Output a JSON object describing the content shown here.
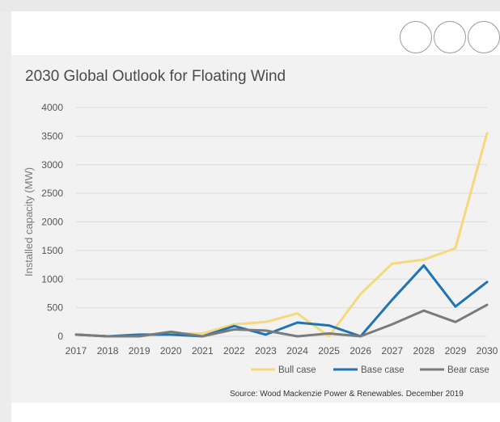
{
  "chart_data": {
    "type": "line",
    "title": "2030 Global Outlook for Floating Wind",
    "xlabel": "",
    "ylabel": "Installed capacity (MW)",
    "ylim": [
      0,
      4000
    ],
    "yticks": [
      0,
      500,
      1000,
      1500,
      2000,
      2500,
      3000,
      3500,
      4000
    ],
    "categories": [
      "2017",
      "2018",
      "2019",
      "2020",
      "2021",
      "2022",
      "2023",
      "2024",
      "2025",
      "2026",
      "2027",
      "2028",
      "2029",
      "2030"
    ],
    "series": [
      {
        "name": "Bull case",
        "color": "#f5d97a",
        "values": [
          30,
          0,
          0,
          50,
          50,
          210,
          250,
          400,
          0,
          740,
          1270,
          1340,
          1540,
          3550
        ]
      },
      {
        "name": "Base case",
        "color": "#1f74b8",
        "values": [
          30,
          0,
          30,
          30,
          0,
          180,
          30,
          240,
          190,
          0,
          640,
          1240,
          520,
          950
        ]
      },
      {
        "name": "Bear case",
        "color": "#7b7b7b",
        "values": [
          30,
          0,
          0,
          80,
          0,
          120,
          100,
          0,
          50,
          0,
          210,
          450,
          250,
          550
        ]
      }
    ],
    "grid": true,
    "legend": "bottom-right",
    "source": "Source: Wood Mackenzie Power & Renewables. December 2019"
  }
}
